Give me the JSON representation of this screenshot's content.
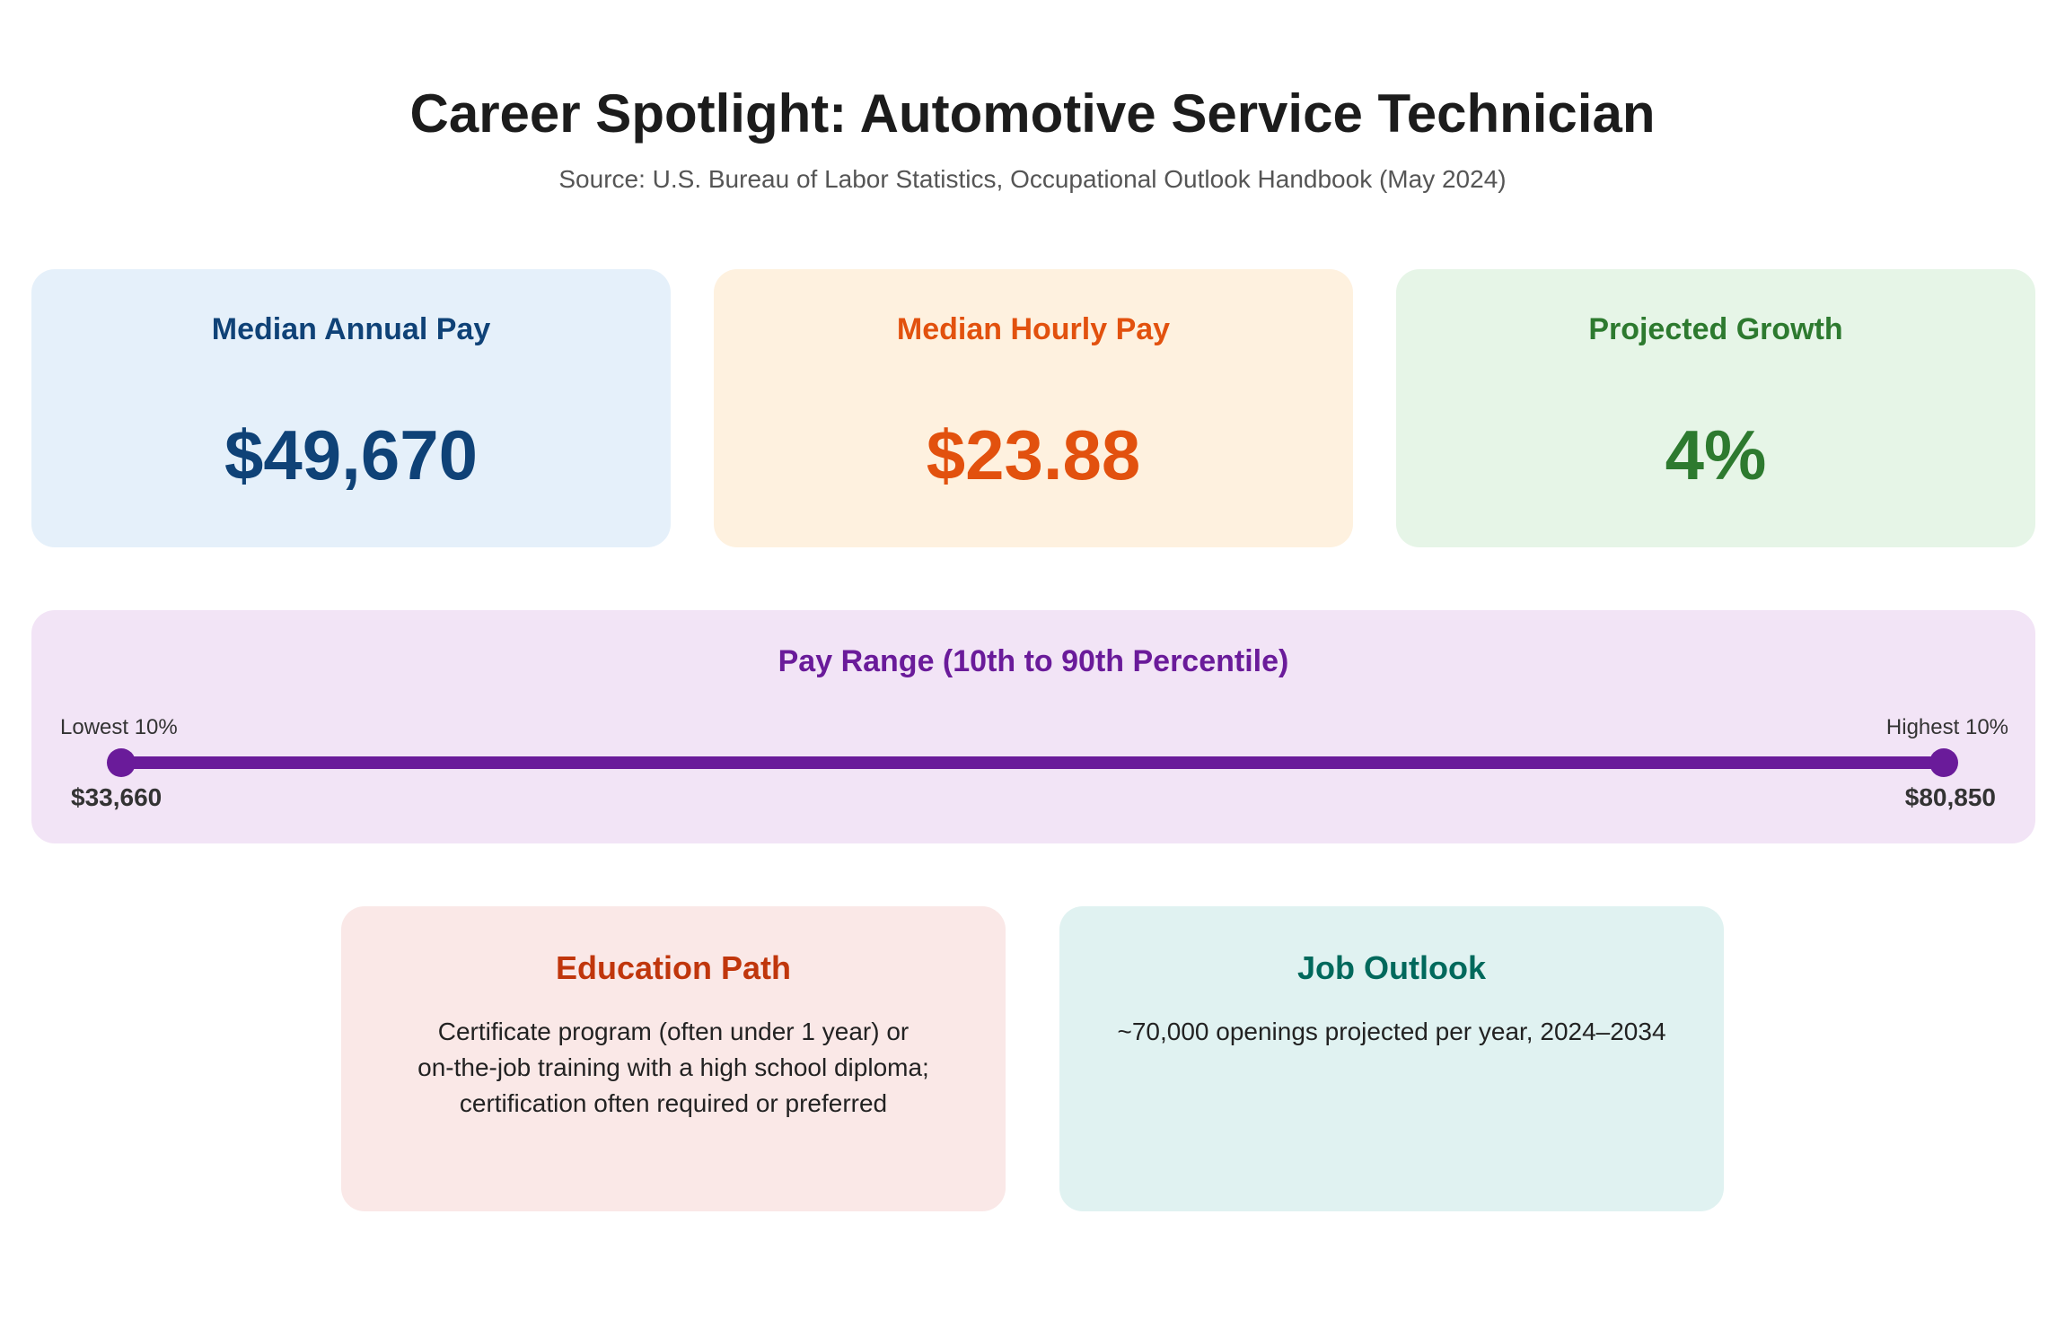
{
  "header": {
    "title": "Career Spotlight: Automotive Service Technician",
    "source": "Source: U.S. Bureau of Labor Statistics, Occupational Outlook Handbook (May 2024)"
  },
  "stats": {
    "annual": {
      "label": "Median Annual Pay",
      "value": "$49,670",
      "color": "#0f4277"
    },
    "hourly": {
      "label": "Median Hourly Pay",
      "value": "$23.88",
      "color": "#e2510e"
    },
    "growth": {
      "label": "Projected Growth",
      "value": "4%",
      "color": "#2d7a2f"
    }
  },
  "pay_range": {
    "title": "Pay Range (10th to 90th Percentile)",
    "low_label": "Lowest 10%",
    "high_label": "Highest 10%",
    "low_value": "$33,660",
    "high_value": "$80,850",
    "color": "#6a1b9a"
  },
  "education": {
    "title": "Education Path",
    "lines": [
      "Certificate program (often under 1 year) or",
      "on-the-job training with a high school diploma;",
      "certification often required or preferred"
    ]
  },
  "outlook": {
    "title": "Job Outlook",
    "text": "~70,000 openings projected per year, 2024–2034"
  }
}
